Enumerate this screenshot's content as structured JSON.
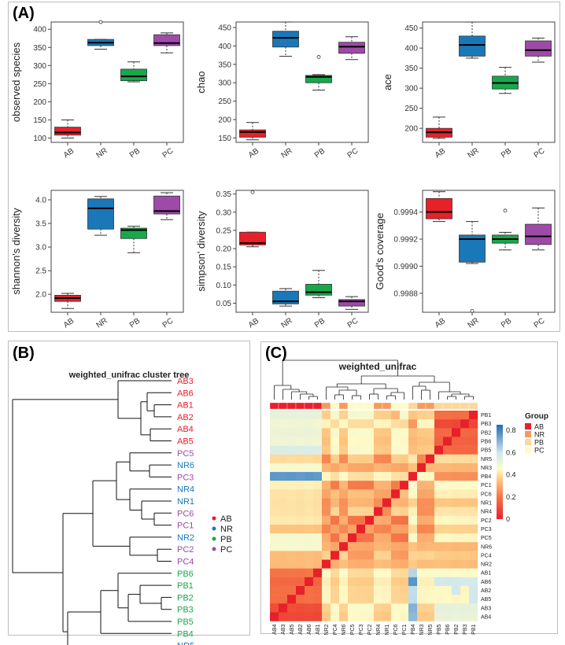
{
  "panel_labels": {
    "a": "(A)",
    "b": "(B)",
    "c": "(C)"
  },
  "colors": {
    "AB": "#e8202a",
    "NR": "#1a78b8",
    "PB": "#18a84c",
    "PC": "#9e4aa8",
    "heat_low": "#e8202a",
    "heat_mid": "#fefbc8",
    "heat_high": "#1e6db5"
  },
  "chart_data": [
    {
      "type": "box",
      "categories": [
        "AB",
        "NR",
        "PB",
        "PC"
      ],
      "ylabel": "observed species",
      "ylim": [
        88,
        420
      ],
      "yticks": [
        "100",
        "150",
        "200",
        "250",
        "300",
        "350",
        "400"
      ],
      "boxes": [
        {
          "min": 100,
          "q1": 108,
          "median": 115,
          "q3": 130,
          "max": 150,
          "outliers": []
        },
        {
          "min": 345,
          "q1": 355,
          "median": 363,
          "q3": 372,
          "max": 372,
          "outliers": [
            420
          ]
        },
        {
          "min": 255,
          "q1": 258,
          "median": 270,
          "q3": 290,
          "max": 310,
          "outliers": []
        },
        {
          "min": 335,
          "q1": 355,
          "median": 362,
          "q3": 385,
          "max": 390,
          "outliers": []
        }
      ]
    },
    {
      "type": "box",
      "categories": [
        "AB",
        "NR",
        "PB",
        "PC"
      ],
      "ylabel": "chao",
      "ylim": [
        138,
        465
      ],
      "yticks": [
        "150",
        "200",
        "250",
        "300",
        "350",
        "400",
        "450"
      ],
      "boxes": [
        {
          "min": 145,
          "q1": 152,
          "median": 166,
          "q3": 172,
          "max": 192,
          "outliers": []
        },
        {
          "min": 372,
          "q1": 397,
          "median": 422,
          "q3": 440,
          "max": 465,
          "outliers": []
        },
        {
          "min": 280,
          "q1": 300,
          "median": 316,
          "q3": 320,
          "max": 322,
          "outliers": [
            370
          ]
        },
        {
          "min": 363,
          "q1": 380,
          "median": 398,
          "q3": 410,
          "max": 425,
          "outliers": []
        }
      ]
    },
    {
      "type": "box",
      "categories": [
        "AB",
        "NR",
        "PB",
        "PC"
      ],
      "ylabel": "ace",
      "ylim": [
        165,
        465
      ],
      "yticks": [
        "200",
        "250",
        "300",
        "350",
        "400",
        "450"
      ],
      "boxes": [
        {
          "min": 175,
          "q1": 178,
          "median": 190,
          "q3": 200,
          "max": 228,
          "outliers": []
        },
        {
          "min": 375,
          "q1": 380,
          "median": 408,
          "q3": 430,
          "max": 465,
          "outliers": []
        },
        {
          "min": 287,
          "q1": 298,
          "median": 313,
          "q3": 330,
          "max": 352,
          "outliers": []
        },
        {
          "min": 365,
          "q1": 380,
          "median": 395,
          "q3": 418,
          "max": 425,
          "outliers": []
        }
      ]
    },
    {
      "type": "box",
      "categories": [
        "AB",
        "NR",
        "PB",
        "PC"
      ],
      "ylabel": "shannon's diversity",
      "ylim": [
        1.62,
        4.2
      ],
      "yticks": [
        "2.0",
        "2.5",
        "3.0",
        "3.5",
        "4.0"
      ],
      "boxes": [
        {
          "min": 1.7,
          "q1": 1.85,
          "median": 1.92,
          "q3": 1.98,
          "max": 2.02,
          "outliers": []
        },
        {
          "min": 3.25,
          "q1": 3.38,
          "median": 3.82,
          "q3": 4.02,
          "max": 4.07,
          "outliers": []
        },
        {
          "min": 2.88,
          "q1": 3.18,
          "median": 3.36,
          "q3": 3.4,
          "max": 3.44,
          "outliers": []
        },
        {
          "min": 3.58,
          "q1": 3.7,
          "median": 3.76,
          "q3": 4.08,
          "max": 4.15,
          "outliers": []
        }
      ]
    },
    {
      "type": "box",
      "categories": [
        "AB",
        "NR",
        "PB",
        "PC"
      ],
      "ylabel": "simpson' diversity",
      "ylim": [
        0.025,
        0.36
      ],
      "yticks": [
        "0.05",
        "0.10",
        "0.15",
        "0.20",
        "0.25",
        "0.30",
        "0.35"
      ],
      "boxes": [
        {
          "min": 0.205,
          "q1": 0.21,
          "median": 0.215,
          "q3": 0.245,
          "max": 0.245,
          "outliers": [
            0.355
          ]
        },
        {
          "min": 0.042,
          "q1": 0.048,
          "median": 0.055,
          "q3": 0.083,
          "max": 0.09,
          "outliers": []
        },
        {
          "min": 0.065,
          "q1": 0.072,
          "median": 0.08,
          "q3": 0.102,
          "max": 0.14,
          "outliers": []
        },
        {
          "min": 0.033,
          "q1": 0.042,
          "median": 0.055,
          "q3": 0.06,
          "max": 0.068,
          "outliers": []
        }
      ]
    },
    {
      "type": "box",
      "categories": [
        "AB",
        "NR",
        "PB",
        "PC"
      ],
      "ylabel": "Good's coverage",
      "ylim": [
        0.99866,
        0.99956
      ],
      "yticks": [
        "0.9988",
        "0.9990",
        "0.9992",
        "0.9994"
      ],
      "boxes": [
        {
          "min": 0.99933,
          "q1": 0.99935,
          "median": 0.9994,
          "q3": 0.9995,
          "max": 0.99955,
          "outliers": []
        },
        {
          "min": 0.99902,
          "q1": 0.99903,
          "median": 0.9992,
          "q3": 0.99923,
          "max": 0.99933,
          "outliers": [
            0.99867
          ]
        },
        {
          "min": 0.99912,
          "q1": 0.99917,
          "median": 0.9992,
          "q3": 0.99923,
          "max": 0.99925,
          "outliers": [
            0.99941
          ]
        },
        {
          "min": 0.99912,
          "q1": 0.99916,
          "median": 0.99922,
          "q3": 0.99931,
          "max": 0.99943,
          "outliers": []
        }
      ]
    },
    {
      "type": "dendrogram",
      "title": "weighted_unifrac cluster tree",
      "leaves": [
        {
          "label": "AB3",
          "group": "AB"
        },
        {
          "label": "AB6",
          "group": "AB"
        },
        {
          "label": "AB1",
          "group": "AB"
        },
        {
          "label": "AB2",
          "group": "AB"
        },
        {
          "label": "AB4",
          "group": "AB"
        },
        {
          "label": "AB5",
          "group": "AB"
        },
        {
          "label": "PC5",
          "group": "PC"
        },
        {
          "label": "NR6",
          "group": "NR"
        },
        {
          "label": "PC3",
          "group": "PC"
        },
        {
          "label": "NR4",
          "group": "NR"
        },
        {
          "label": "NR1",
          "group": "NR"
        },
        {
          "label": "PC6",
          "group": "PC"
        },
        {
          "label": "PC1",
          "group": "PC"
        },
        {
          "label": "NR2",
          "group": "NR"
        },
        {
          "label": "PC2",
          "group": "PC"
        },
        {
          "label": "PC4",
          "group": "PC"
        },
        {
          "label": "PB6",
          "group": "PB"
        },
        {
          "label": "PB1",
          "group": "PB"
        },
        {
          "label": "PB2",
          "group": "PB"
        },
        {
          "label": "PB3",
          "group": "PB"
        },
        {
          "label": "PB5",
          "group": "PB"
        },
        {
          "label": "PB4",
          "group": "PB"
        },
        {
          "label": "NR5",
          "group": "NR"
        },
        {
          "label": "NR3",
          "group": "NR"
        }
      ],
      "legend": [
        {
          "label": "AB",
          "group": "AB"
        },
        {
          "label": "NR",
          "group": "NR"
        },
        {
          "label": "PB",
          "group": "PB"
        },
        {
          "label": "PC",
          "group": "PC"
        }
      ]
    },
    {
      "type": "heatmap",
      "title": "weighted_unifrac",
      "row_labels": [
        "PB1",
        "PB3",
        "PB2",
        "PB6",
        "PB5",
        "NR5",
        "NR3",
        "PB4",
        "PC1",
        "PC6",
        "NR1",
        "NR4",
        "PC2",
        "PC3",
        "PC5",
        "NR6",
        "PC4",
        "NR2",
        "AB1",
        "AB6",
        "AB2",
        "AB5",
        "AB3",
        "AB4"
      ],
      "col_labels": [
        "AB4",
        "AB3",
        "AB5",
        "AB2",
        "AB6",
        "AB1",
        "NR2",
        "PC4",
        "NR6",
        "PC5",
        "PC3",
        "PC2",
        "NR4",
        "NR1",
        "PC6",
        "PC1",
        "PB4",
        "NR3",
        "NR5",
        "PB5",
        "PB6",
        "PB2",
        "PB3",
        "PB1"
      ],
      "group_bar": [
        "AB",
        "AB",
        "AB",
        "AB",
        "AB",
        "AB",
        "NR",
        "PC",
        "NR",
        "PC",
        "PC",
        "PC",
        "NR",
        "NR",
        "PC",
        "PC",
        "PB",
        "NR",
        "NR",
        "PB",
        "PB",
        "PB",
        "PB",
        "PB"
      ],
      "scale_ticks": [
        "0.8",
        "0.6",
        "0.4",
        "0.2",
        "0"
      ],
      "scale_range": [
        0,
        0.85
      ],
      "legend_title": "Group",
      "legend": [
        {
          "label": "AB",
          "color": "#e8202a"
        },
        {
          "label": "NR",
          "color": "#f79a5e"
        },
        {
          "label": "PB",
          "color": "#fdd79a"
        },
        {
          "label": "PC",
          "color": "#fefbc8"
        }
      ],
      "block_means": {
        "AB-AB": 0.12,
        "AB-NR": 0.4,
        "AB-PC": 0.4,
        "AB-PB": 0.52,
        "AB-PBX": 0.7,
        "NR-NR": 0.26,
        "NR-PC": 0.3,
        "PC-PC": 0.26,
        "NR-PB": 0.38,
        "PC-PB": 0.4,
        "PB-PB": 0.15,
        "PBX-PBX": 0.2,
        "PBX-NR": 0.4,
        "PBX-PC": 0.42,
        "PBX-PB": 0.32
      }
    }
  ]
}
